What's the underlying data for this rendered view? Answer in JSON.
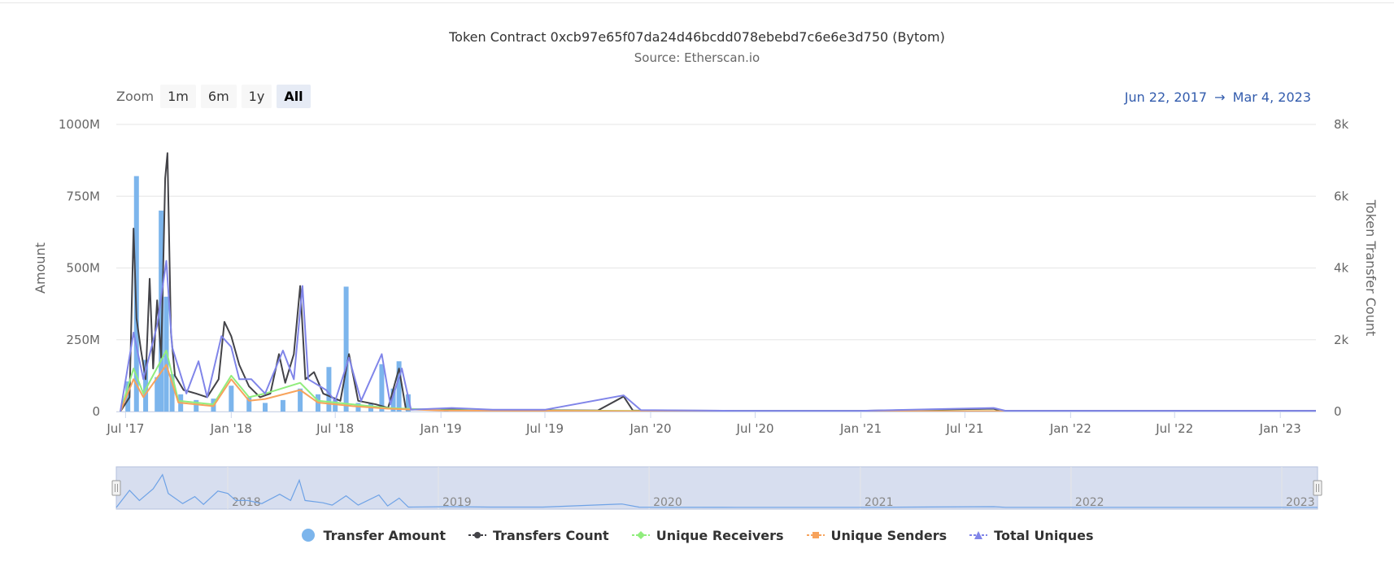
{
  "title": "Token Contract 0xcb97e65f07da24d46bcdd078ebebd7c6e6e3d750 (Bytom)",
  "subtitle": "Source: Etherscan.io",
  "zoom": {
    "label": "Zoom",
    "buttons": [
      "1m",
      "6m",
      "1y",
      "All"
    ],
    "active": "All"
  },
  "range": {
    "from": "Jun 22, 2017",
    "arrow": "→",
    "to": "Mar 4, 2023"
  },
  "colors": {
    "transfer_amount": "#7cb5ec",
    "transfers_count": "#434348",
    "unique_receivers": "#90ed7d",
    "unique_senders": "#f7a35c",
    "total_uniques": "#8085e9",
    "navigator_mask": "#d0d8ec",
    "range_text": "#335cad"
  },
  "chart_data": {
    "type": "line",
    "x_ticks": [
      "Jul '17",
      "Jan '18",
      "Jul '18",
      "Jan '19",
      "Jul '19",
      "Jan '20",
      "Jul '20",
      "Jan '21",
      "Jul '21",
      "Jan '22",
      "Jul '22",
      "Jan '23"
    ],
    "y_left": {
      "label": "Amount",
      "ticks": [
        "0",
        "250M",
        "500M",
        "750M",
        "1000M"
      ],
      "range": [
        0,
        1000000000
      ]
    },
    "y_right": {
      "label": "Token Transfer Count",
      "ticks": [
        "0",
        "2k",
        "4k",
        "6k",
        "8k"
      ],
      "range": [
        0,
        8000
      ]
    },
    "x_range": [
      "2017-06-22",
      "2023-03-04"
    ],
    "navigator_ticks": [
      "2018",
      "2019",
      "2020",
      "2021",
      "2022",
      "2023"
    ],
    "series": [
      {
        "name": "Transfer Amount",
        "type": "column",
        "axis": "left",
        "points": [
          [
            "2017-07-05",
            105000000
          ],
          [
            "2017-07-20",
            820000000
          ],
          [
            "2017-08-05",
            180000000
          ],
          [
            "2017-08-25",
            120000000
          ],
          [
            "2017-09-01",
            700000000
          ],
          [
            "2017-09-10",
            400000000
          ],
          [
            "2017-09-20",
            130000000
          ],
          [
            "2017-10-05",
            60000000
          ],
          [
            "2017-11-01",
            40000000
          ],
          [
            "2017-12-01",
            45000000
          ],
          [
            "2018-01-01",
            90000000
          ],
          [
            "2018-02-01",
            50000000
          ],
          [
            "2018-03-01",
            30000000
          ],
          [
            "2018-04-01",
            40000000
          ],
          [
            "2018-05-01",
            80000000
          ],
          [
            "2018-06-01",
            60000000
          ],
          [
            "2018-06-20",
            155000000
          ],
          [
            "2018-07-01",
            40000000
          ],
          [
            "2018-07-20",
            435000000
          ],
          [
            "2018-08-10",
            30000000
          ],
          [
            "2018-09-01",
            30000000
          ],
          [
            "2018-09-20",
            165000000
          ],
          [
            "2018-10-10",
            80000000
          ],
          [
            "2018-10-20",
            175000000
          ],
          [
            "2018-11-05",
            60000000
          ],
          [
            "2019-01-10",
            5000000
          ]
        ]
      },
      {
        "name": "Transfers Count",
        "type": "line",
        "axis": "right",
        "points": [
          [
            "2017-06-22",
            0
          ],
          [
            "2017-07-08",
            400
          ],
          [
            "2017-07-15",
            5100
          ],
          [
            "2017-07-20",
            2600
          ],
          [
            "2017-07-28",
            1700
          ],
          [
            "2017-08-05",
            900
          ],
          [
            "2017-08-12",
            3700
          ],
          [
            "2017-08-18",
            1200
          ],
          [
            "2017-08-25",
            3100
          ],
          [
            "2017-09-01",
            1500
          ],
          [
            "2017-09-08",
            6500
          ],
          [
            "2017-09-12",
            7200
          ],
          [
            "2017-09-18",
            2200
          ],
          [
            "2017-09-25",
            1000
          ],
          [
            "2017-10-10",
            600
          ],
          [
            "2017-11-01",
            500
          ],
          [
            "2017-11-20",
            400
          ],
          [
            "2017-12-10",
            900
          ],
          [
            "2017-12-20",
            2500
          ],
          [
            "2018-01-01",
            2100
          ],
          [
            "2018-01-15",
            1300
          ],
          [
            "2018-02-01",
            700
          ],
          [
            "2018-02-20",
            400
          ],
          [
            "2018-03-10",
            500
          ],
          [
            "2018-03-25",
            1600
          ],
          [
            "2018-04-05",
            800
          ],
          [
            "2018-04-20",
            1600
          ],
          [
            "2018-05-01",
            3500
          ],
          [
            "2018-05-10",
            900
          ],
          [
            "2018-05-25",
            1100
          ],
          [
            "2018-06-10",
            500
          ],
          [
            "2018-07-10",
            300
          ],
          [
            "2018-07-25",
            1600
          ],
          [
            "2018-08-10",
            300
          ],
          [
            "2018-09-10",
            200
          ],
          [
            "2018-10-01",
            100
          ],
          [
            "2018-10-20",
            1200
          ],
          [
            "2018-11-01",
            60
          ],
          [
            "2019-01-15",
            60
          ],
          [
            "2019-03-01",
            40
          ],
          [
            "2019-06-01",
            40
          ],
          [
            "2019-10-01",
            30
          ],
          [
            "2019-11-15",
            420
          ],
          [
            "2019-12-01",
            30
          ],
          [
            "2020-06-01",
            20
          ],
          [
            "2021-01-01",
            20
          ],
          [
            "2021-08-20",
            80
          ],
          [
            "2021-09-01",
            20
          ],
          [
            "2023-03-04",
            20
          ]
        ]
      },
      {
        "name": "Unique Receivers",
        "type": "line",
        "axis": "right",
        "points": [
          [
            "2017-06-22",
            0
          ],
          [
            "2017-07-15",
            1200
          ],
          [
            "2017-08-01",
            500
          ],
          [
            "2017-09-10",
            1700
          ],
          [
            "2017-10-01",
            300
          ],
          [
            "2017-12-01",
            200
          ],
          [
            "2018-01-01",
            1000
          ],
          [
            "2018-02-01",
            400
          ],
          [
            "2018-03-01",
            500
          ],
          [
            "2018-05-01",
            800
          ],
          [
            "2018-06-01",
            300
          ],
          [
            "2018-08-01",
            200
          ],
          [
            "2018-10-01",
            100
          ],
          [
            "2019-01-01",
            40
          ],
          [
            "2020-01-01",
            15
          ],
          [
            "2023-03-04",
            10
          ]
        ]
      },
      {
        "name": "Unique Senders",
        "type": "line",
        "axis": "right",
        "points": [
          [
            "2017-06-22",
            0
          ],
          [
            "2017-07-15",
            900
          ],
          [
            "2017-08-01",
            400
          ],
          [
            "2017-09-10",
            1300
          ],
          [
            "2017-10-01",
            250
          ],
          [
            "2017-12-01",
            150
          ],
          [
            "2018-01-01",
            900
          ],
          [
            "2018-02-01",
            300
          ],
          [
            "2018-03-01",
            350
          ],
          [
            "2018-05-01",
            600
          ],
          [
            "2018-06-01",
            250
          ],
          [
            "2018-08-01",
            150
          ],
          [
            "2018-10-01",
            80
          ],
          [
            "2019-01-01",
            30
          ],
          [
            "2020-01-01",
            10
          ],
          [
            "2023-03-04",
            8
          ]
        ]
      },
      {
        "name": "Total Uniques",
        "type": "line",
        "axis": "right",
        "points": [
          [
            "2017-06-22",
            0
          ],
          [
            "2017-07-15",
            2200
          ],
          [
            "2017-08-01",
            900
          ],
          [
            "2017-08-25",
            2400
          ],
          [
            "2017-09-10",
            4200
          ],
          [
            "2017-09-20",
            1800
          ],
          [
            "2017-10-15",
            500
          ],
          [
            "2017-11-05",
            1400
          ],
          [
            "2017-11-20",
            400
          ],
          [
            "2017-12-15",
            2100
          ],
          [
            "2018-01-01",
            1800
          ],
          [
            "2018-01-15",
            900
          ],
          [
            "2018-02-05",
            900
          ],
          [
            "2018-03-01",
            500
          ],
          [
            "2018-04-01",
            1700
          ],
          [
            "2018-04-20",
            900
          ],
          [
            "2018-05-05",
            3500
          ],
          [
            "2018-05-15",
            900
          ],
          [
            "2018-06-15",
            600
          ],
          [
            "2018-07-01",
            300
          ],
          [
            "2018-07-25",
            1500
          ],
          [
            "2018-08-15",
            300
          ],
          [
            "2018-09-20",
            1600
          ],
          [
            "2018-10-05",
            200
          ],
          [
            "2018-10-25",
            1200
          ],
          [
            "2018-11-10",
            50
          ],
          [
            "2019-01-20",
            100
          ],
          [
            "2019-04-01",
            50
          ],
          [
            "2019-07-01",
            50
          ],
          [
            "2019-11-15",
            450
          ],
          [
            "2019-12-15",
            40
          ],
          [
            "2020-06-01",
            20
          ],
          [
            "2021-01-01",
            20
          ],
          [
            "2021-08-20",
            100
          ],
          [
            "2021-09-10",
            20
          ],
          [
            "2023-03-04",
            20
          ]
        ]
      }
    ],
    "legend": {
      "position": "bottom"
    },
    "grid": true
  }
}
